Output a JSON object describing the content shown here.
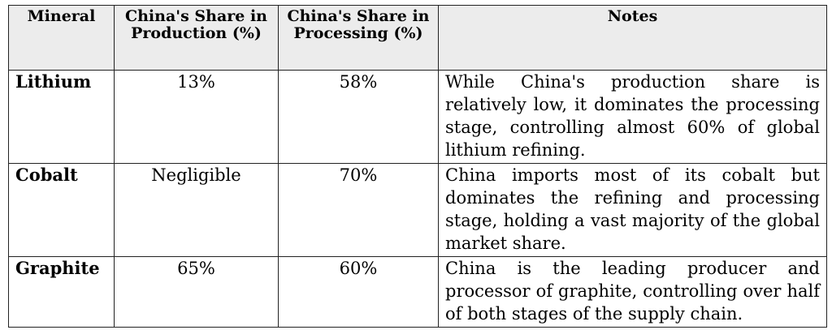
{
  "table": {
    "headers": [
      "Mineral",
      "China's Share in Production (%)",
      "China's Share in Processing (%)",
      "Notes"
    ],
    "rows": [
      {
        "mineral": "Lithium",
        "production": "13%",
        "processing": "58%",
        "notes": "While China's production share is relatively low, it dominates the processing stage, controlling almost 60% of global lithium refining."
      },
      {
        "mineral": "Cobalt",
        "production": "Negligible",
        "processing": "70%",
        "notes": "China imports most of its cobalt but dominates the refining and processing stage, holding a vast majority of the global market share."
      },
      {
        "mineral": "Graphite",
        "production": "65%",
        "processing": "60%",
        "notes": "China is the leading producer and processor of graphite, controlling over half of both stages of the supply chain."
      }
    ]
  }
}
